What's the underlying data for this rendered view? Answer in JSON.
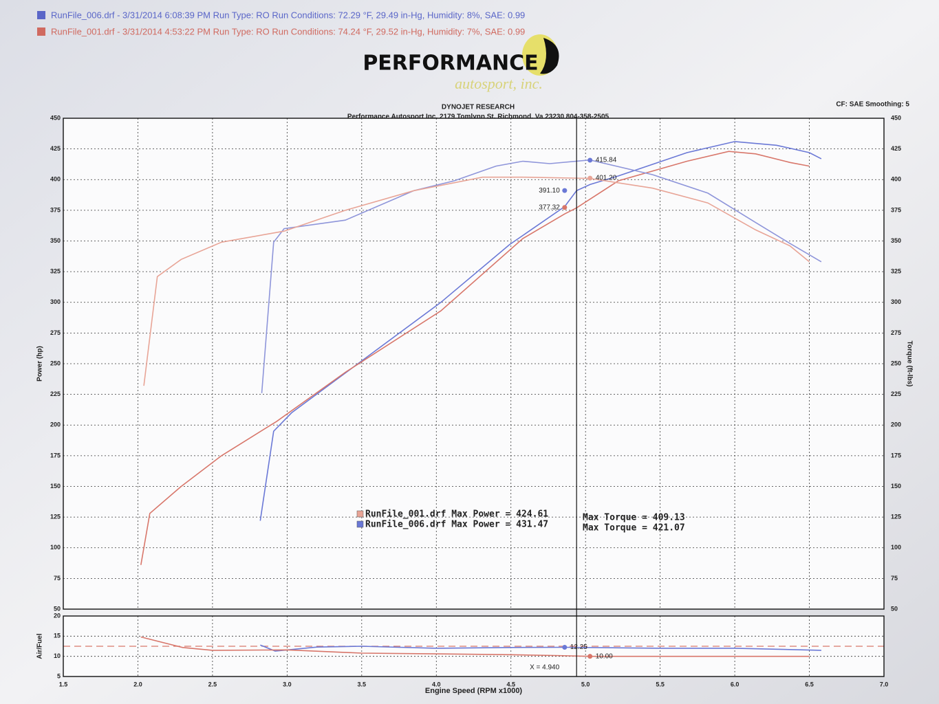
{
  "header": {
    "runs": [
      {
        "text": "RunFile_006.drf - 3/31/2014 6:08:39 PM  Run Type: RO  Run Conditions: 72.29 °F, 29.49 in-Hg,  Humidity:  8%, SAE: 0.99",
        "color": "#5a66c8"
      },
      {
        "text": "RunFile_001.drf - 3/31/2014 4:53:22 PM  Run Type: RO  Run Conditions: 74.24 °F, 29.52 in-Hg,  Humidity:  7%, SAE: 0.99",
        "color": "#d06a60"
      }
    ],
    "logo": "PERFORMANCE",
    "logo_sub": "autosport, inc.",
    "company": "DYNOJET RESEARCH",
    "address": "Performance Autosport Inc. 2179 Tomlynn St. Richmond, Va 23230 804-358-2505",
    "settings": "CF: SAE  Smoothing: 5"
  },
  "chart_data": [
    {
      "type": "line",
      "ylabel": "Power (hp)",
      "y2label": "Torque (ft-lbs)",
      "xlim": [
        1.5,
        7.0
      ],
      "xticks": [
        1.5,
        2,
        2.5,
        3,
        3.5,
        4,
        4.5,
        5,
        5.5,
        6,
        6.5,
        7
      ],
      "ylim": [
        50,
        450
      ],
      "yticks": [
        50,
        75,
        100,
        125,
        150,
        175,
        200,
        225,
        250,
        275,
        300,
        325,
        350,
        375,
        400,
        425,
        450
      ],
      "y2lim": [
        50,
        450
      ],
      "y2ticks": [
        50,
        75,
        100,
        125,
        150,
        175,
        200,
        225,
        250,
        275,
        300,
        325,
        350,
        375,
        400,
        425,
        450
      ],
      "grid": true,
      "series": [
        {
          "color": "#6a78d6",
          "x": [
            2.82,
            2.91,
            3.03,
            3.53,
            4.03,
            4.49,
            4.86,
            4.94,
            5.03,
            5.22,
            5.68,
            6.0,
            6.28,
            6.5,
            6.58
          ],
          "values": [
            122,
            195,
            210,
            255,
            300,
            347,
            378,
            391,
            396,
            403,
            422,
            431,
            428,
            422,
            417
          ]
        },
        {
          "color": "#d8766a",
          "x": [
            2.02,
            2.08,
            2.29,
            2.56,
            2.93,
            3.39,
            4.03,
            4.58,
            4.86,
            4.94,
            5.22,
            5.68,
            5.96,
            6.14,
            6.37,
            6.5
          ],
          "values": [
            86,
            128,
            150,
            175,
            203,
            243,
            293,
            352,
            372,
            377,
            399,
            415,
            423,
            421,
            414,
            411
          ]
        },
        {
          "color": "#8e95da",
          "axis": "y2",
          "x": [
            2.83,
            2.91,
            2.98,
            3.39,
            3.85,
            4.12,
            4.4,
            4.58,
            4.76,
            5.03,
            5.45,
            5.82,
            6.14,
            6.37,
            6.58
          ],
          "values": [
            226,
            349,
            360,
            367,
            391,
            399,
            411,
            415,
            413,
            416,
            404,
            389,
            365,
            348,
            333
          ]
        },
        {
          "color": "#e8a496",
          "axis": "y2",
          "x": [
            2.04,
            2.13,
            2.29,
            2.56,
            2.98,
            3.39,
            3.85,
            4.31,
            4.58,
            5.03,
            5.45,
            5.82,
            6.14,
            6.37,
            6.5
          ],
          "values": [
            232,
            321,
            335,
            349,
            358,
            375,
            391,
            402,
            402,
            401,
            393,
            381,
            359,
            346,
            333
          ]
        }
      ],
      "markers": [
        {
          "x": 5.03,
          "y": 415.84,
          "label": "415.84",
          "color": "#6a78d6",
          "axis": "y2"
        },
        {
          "x": 5.03,
          "y": 401.2,
          "label": "401.20",
          "color": "#e8a496",
          "axis": "y2"
        },
        {
          "x": 4.86,
          "y": 391.1,
          "label": "391.10",
          "color": "#6a78d6"
        },
        {
          "x": 4.86,
          "y": 377.32,
          "label": "377.32",
          "color": "#d8766a"
        }
      ],
      "summary": [
        {
          "power": "RunFile_001.drf Max Power = 424.61",
          "torque": "Max Torque = 409.13",
          "color": "#e8a496"
        },
        {
          "power": "RunFile_006.drf Max Power = 431.47",
          "torque": "Max Torque = 421.07",
          "color": "#6a78d6"
        }
      ]
    },
    {
      "type": "line",
      "ylabel": "Air/Fuel",
      "xlabel": "Engine Speed (RPM x1000)",
      "xlim": [
        1.5,
        7.0
      ],
      "xticks": [
        1.5,
        {
          "value": 2,
          "label": "2.0"
        },
        2.5,
        {
          "value": 3,
          "label": "3.0"
        },
        3.5,
        {
          "value": 4,
          "label": "4.0"
        },
        4.5,
        {
          "value": 5,
          "label": "5.0"
        },
        5.5,
        {
          "value": 6,
          "label": "6.0"
        },
        6.5,
        {
          "value": 7,
          "label": "7.0"
        }
      ],
      "ylim": [
        5,
        20
      ],
      "yticks": [
        5,
        10,
        15,
        20
      ],
      "grid": true,
      "reference": 12.5,
      "series": [
        {
          "color": "#6a78d6",
          "x": [
            2.82,
            2.92,
            3.2,
            3.5,
            4.0,
            4.5,
            4.86,
            5.5,
            6.0,
            6.58
          ],
          "values": [
            12.8,
            11.3,
            12.3,
            12.5,
            12.0,
            12.2,
            12.25,
            12.0,
            12.0,
            11.5
          ]
        },
        {
          "color": "#d8766a",
          "x": [
            2.02,
            2.3,
            2.5,
            3.0,
            3.5,
            4.0,
            4.5,
            4.8,
            5.03,
            6.0,
            6.5
          ],
          "values": [
            14.8,
            12.2,
            11.5,
            11.6,
            10.8,
            10.6,
            10.4,
            10.2,
            10.0,
            10.0,
            10.0
          ]
        }
      ],
      "markers": [
        {
          "x": 4.86,
          "y": 12.25,
          "label": "12.25",
          "color": "#6a78d6"
        },
        {
          "x": 5.03,
          "y": 10,
          "label": "10.00",
          "color": "#d8766a"
        }
      ],
      "cursor": {
        "x": 4.94,
        "label": "X = 4.940"
      }
    }
  ]
}
